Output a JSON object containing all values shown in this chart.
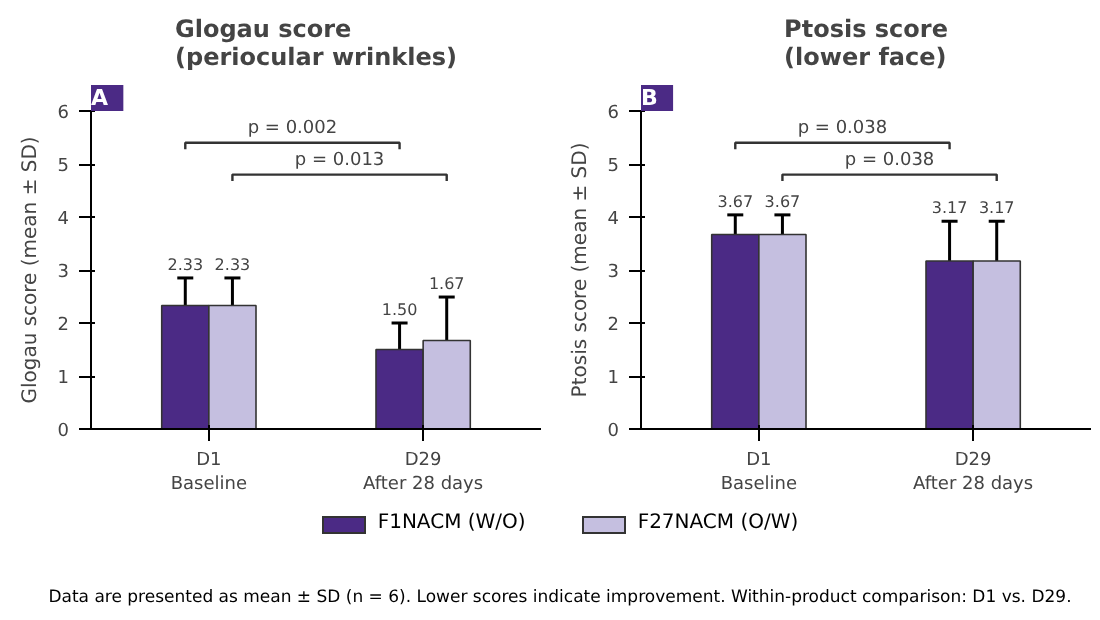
{
  "chart_data": [
    {
      "type": "bar",
      "title": "Glogau score\n(periocular wrinkles)",
      "ylabel": "Glogau score (mean ± SD)",
      "categories": [
        "D1\nBaseline",
        "D29\nAfter 28 days"
      ],
      "series": [
        {
          "name": "F1NACM (W/O)",
          "color": "#4b2a85",
          "values": [
            2.33,
            1.5
          ],
          "errors": [
            0.52,
            0.5
          ],
          "value_labels": [
            "2.33",
            "1.50"
          ]
        },
        {
          "name": "F27NACM (O/W)",
          "color": "#c5bfe0",
          "values": [
            2.33,
            1.67
          ],
          "errors": [
            0.52,
            0.82
          ],
          "value_labels": [
            "2.33",
            "1.67"
          ]
        }
      ],
      "ylim": [
        0,
        6
      ],
      "yticks": [
        0,
        1,
        2,
        3,
        4,
        5,
        6
      ],
      "grid": false,
      "legend": "bottom",
      "annotations": [
        "A",
        "p = 0.002",
        "p = 0.013"
      ]
    },
    {
      "type": "bar",
      "title": "Ptosis score\n(lower face)",
      "ylabel": "Ptosis score (mean ± SD)",
      "categories": [
        "D1\nBaseline",
        "D29\nAfter 28 days"
      ],
      "series": [
        {
          "name": "F1NACM (W/O)",
          "color": "#4b2a85",
          "values": [
            3.67,
            3.17
          ],
          "errors": [
            0.37,
            0.75
          ],
          "value_labels": [
            "3.67",
            "3.17"
          ]
        },
        {
          "name": "F27NACM (O/W)",
          "color": "#c5bfe0",
          "values": [
            3.67,
            3.17
          ],
          "errors": [
            0.37,
            0.75
          ],
          "value_labels": [
            "3.67",
            "3.17"
          ]
        }
      ],
      "ylim": [
        0,
        6
      ],
      "yticks": [
        0,
        1,
        2,
        3,
        4,
        5,
        6
      ],
      "grid": false,
      "legend": "bottom",
      "annotations": [
        "B",
        "p = 0.038",
        "p = 0.038",
        "Data are presented as mean ± SD (n = 6). Lower scores indicate improvement. Within-product comparison: D1 vs. D29."
      ]
    }
  ]
}
